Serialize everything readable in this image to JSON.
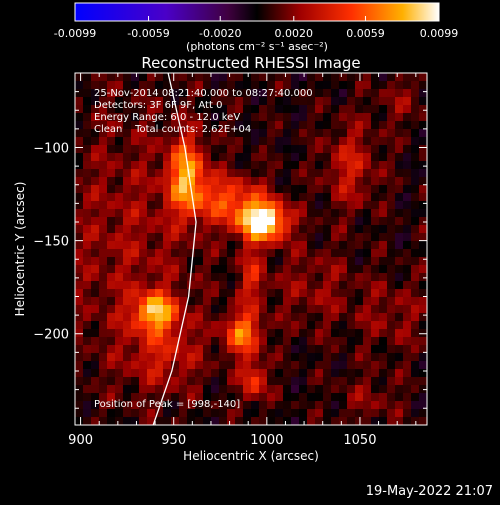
{
  "chart_data": {
    "type": "heatmap",
    "title": "Reconstructed RHESSI Image",
    "xlabel": "Heliocentric X (arcsec)",
    "ylabel": "Heliocentric Y (arcsec)",
    "xlim": [
      897,
      1086
    ],
    "ylim": [
      -249,
      -60
    ],
    "x_ticks": [
      900,
      950,
      1000,
      1050
    ],
    "y_ticks": [
      -100,
      -150,
      -200
    ],
    "colorbar": {
      "min": -0.0099,
      "max": 0.0099,
      "tick_values": [
        -0.0099,
        -0.0059,
        -0.002,
        0.002,
        0.0059,
        0.0099
      ],
      "tick_labels": [
        "-0.0099",
        "-0.0059",
        "-0.0020",
        "0.0020",
        "0.0059",
        "0.0099"
      ],
      "label": "(photons cm⁻² s⁻¹ asec⁻²)"
    },
    "annotations": {
      "time_range": "25-Nov-2014 08:21:40.000 to 08:27:40.000",
      "detectors": "Detectors: 3F 6F 9F, Att 0",
      "energy": "Energy Range: 6.0 - 12.0 keV",
      "clean": "Clean    Total counts: 2.62E+04",
      "peak": "Position of Peak = [998,-140]"
    },
    "peak": {
      "x": 998,
      "y": -140
    },
    "sources": [
      {
        "x": 998,
        "y": -140,
        "sx": 9,
        "sy": 7,
        "a": 0.0106
      },
      {
        "x": 980,
        "y": -128,
        "sx": 14,
        "sy": 9,
        "a": 0.0046
      },
      {
        "x": 957,
        "y": -115,
        "sx": 7,
        "sy": 14,
        "a": 0.0066
      },
      {
        "x": 940,
        "y": -188,
        "sx": 8,
        "sy": 7,
        "a": 0.0068
      },
      {
        "x": 987,
        "y": -200,
        "sx": 7,
        "sy": 8,
        "a": 0.0061
      },
      {
        "x": 993,
        "y": -225,
        "sx": 5,
        "sy": 8,
        "a": 0.0044
      },
      {
        "x": 992,
        "y": -170,
        "sx": 5,
        "sy": 12,
        "a": 0.0032
      },
      {
        "x": 945,
        "y": -210,
        "sx": 14,
        "sy": 14,
        "a": 0.0026
      },
      {
        "x": 925,
        "y": -150,
        "sx": 28,
        "sy": 50,
        "a": 0.0019
      },
      {
        "x": 1045,
        "y": -110,
        "sx": 10,
        "sy": 16,
        "a": 0.003
      },
      {
        "x": 1025,
        "y": -175,
        "sx": 16,
        "sy": 16,
        "a": 0.0017
      },
      {
        "x": 1068,
        "y": -190,
        "sx": 14,
        "sy": 14,
        "a": 0.0016
      },
      {
        "x": 1055,
        "y": -235,
        "sx": 12,
        "sy": 10,
        "a": 0.0014
      },
      {
        "x": 1072,
        "y": -75,
        "sx": 10,
        "sy": 10,
        "a": 0.0014
      }
    ],
    "limb": [
      [
        947,
        -60
      ],
      [
        956,
        -100
      ],
      [
        962,
        -140
      ],
      [
        958,
        -180
      ],
      [
        949,
        -220
      ],
      [
        939,
        -249
      ]
    ],
    "grid": false
  },
  "timestamp": "19-May-2022 21:07"
}
